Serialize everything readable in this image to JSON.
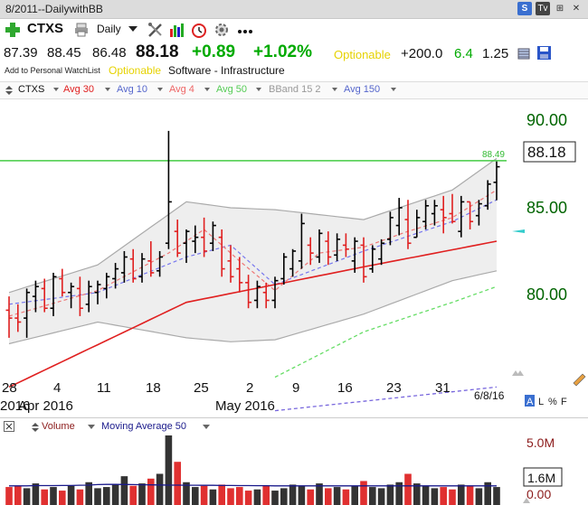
{
  "window": {
    "title": "8/2011--DailywithBB"
  },
  "window_icons": [
    "S",
    "Tv",
    "⊞",
    "✕"
  ],
  "toolbar": {
    "symbol": "CTXS",
    "period": "Daily",
    "icons": [
      "add-icon",
      "print-icon",
      "draw-tools-icon",
      "bar-chart-icon",
      "alarm-icon",
      "settings-icon",
      "more-icon"
    ]
  },
  "quote": {
    "open": "87.39",
    "high": "88.45",
    "low": "86.48",
    "last": "88.18",
    "change": "+0.89",
    "change_pct": "+1.02%",
    "optionable": "Optionable",
    "volume_change": "+200.0",
    "rs": "6.4",
    "beta": "1.25"
  },
  "info": {
    "add_watchlist": "Add to Personal WatchList",
    "optionable": "Optionable",
    "sector": "Software - Infrastructure"
  },
  "legend": {
    "symbol": "CTXS",
    "avg30": "Avg 30",
    "avg10": "Avg 10",
    "avg4": "Avg 4",
    "avg50": "Avg 50",
    "bband": "BBand 15 2",
    "avg150": "Avg 150"
  },
  "colors": {
    "up": "#000000",
    "down": "#e02020",
    "avg30": "#e02020",
    "avg10": "#7777ee",
    "avg4": "#ee7777",
    "avg50": "#66dd66",
    "avg150": "#7766dd",
    "band_fill": "#eeeeee",
    "band_line": "#aaaaaa",
    "level_line": "#44cc44",
    "axis_label": "#006400",
    "positive": "#00aa00"
  },
  "price_axis": [
    "90.00",
    "85.00",
    "80.00"
  ],
  "last_price_box": "88.18",
  "level_label": "88.49",
  "date_stamp": "6/8/16",
  "x_axis": {
    "days": [
      "28",
      "4",
      "11",
      "18",
      "25",
      "2",
      "9",
      "16",
      "23",
      "31"
    ],
    "months": [
      "2016",
      "Apr 2016",
      "May 2016"
    ]
  },
  "panel_buttons": {
    "a": "A",
    "l": "L",
    "pct": "%",
    "f": "F"
  },
  "volume_legend": {
    "label": "Volume",
    "ma": "Moving Average 50"
  },
  "volume_axis": [
    "5.0M",
    "1.6M",
    "0.00"
  ],
  "chart_data": {
    "type": "ohlc",
    "price_range": [
      77.8,
      91.6
    ],
    "level": 88.49,
    "bars": [
      {
        "o": 80.9,
        "h": 81.6,
        "l": 79.5,
        "c": 80.5
      },
      {
        "o": 80.5,
        "h": 81.2,
        "l": 79.8,
        "c": 80.3
      },
      {
        "o": 80.5,
        "h": 82.0,
        "l": 79.5,
        "c": 81.8
      },
      {
        "o": 81.6,
        "h": 82.4,
        "l": 80.8,
        "c": 82.1
      },
      {
        "o": 82.0,
        "h": 82.5,
        "l": 80.8,
        "c": 81.0
      },
      {
        "o": 81.0,
        "h": 82.8,
        "l": 80.6,
        "c": 82.6
      },
      {
        "o": 82.5,
        "h": 83.0,
        "l": 81.6,
        "c": 81.8
      },
      {
        "o": 81.8,
        "h": 82.3,
        "l": 81.0,
        "c": 82.1
      },
      {
        "o": 82.0,
        "h": 82.6,
        "l": 80.6,
        "c": 81.0
      },
      {
        "o": 81.2,
        "h": 82.4,
        "l": 80.8,
        "c": 82.1
      },
      {
        "o": 81.8,
        "h": 82.4,
        "l": 81.2,
        "c": 82.2
      },
      {
        "o": 82.0,
        "h": 82.8,
        "l": 81.5,
        "c": 82.6
      },
      {
        "o": 82.5,
        "h": 83.3,
        "l": 82.0,
        "c": 83.0
      },
      {
        "o": 82.8,
        "h": 83.9,
        "l": 82.3,
        "c": 83.6
      },
      {
        "o": 83.5,
        "h": 84.0,
        "l": 82.3,
        "c": 82.5
      },
      {
        "o": 82.6,
        "h": 83.8,
        "l": 82.3,
        "c": 83.5
      },
      {
        "o": 83.4,
        "h": 84.4,
        "l": 82.6,
        "c": 82.8
      },
      {
        "o": 82.9,
        "h": 83.9,
        "l": 82.6,
        "c": 83.6
      },
      {
        "o": 84.3,
        "h": 90.0,
        "l": 84.0,
        "c": 86.4
      },
      {
        "o": 84.9,
        "h": 85.5,
        "l": 83.6,
        "c": 83.8
      },
      {
        "o": 84.3,
        "h": 85.0,
        "l": 83.3,
        "c": 84.9
      },
      {
        "o": 84.4,
        "h": 85.2,
        "l": 83.8,
        "c": 84.6
      },
      {
        "o": 84.6,
        "h": 85.6,
        "l": 83.6,
        "c": 83.9
      },
      {
        "o": 84.3,
        "h": 85.4,
        "l": 83.9,
        "c": 85.2
      },
      {
        "o": 84.6,
        "h": 85.0,
        "l": 82.6,
        "c": 83.0
      },
      {
        "o": 83.4,
        "h": 84.2,
        "l": 82.3,
        "c": 82.6
      },
      {
        "o": 83.0,
        "h": 83.6,
        "l": 81.8,
        "c": 82.3
      },
      {
        "o": 82.3,
        "h": 82.7,
        "l": 81.0,
        "c": 81.3
      },
      {
        "o": 81.4,
        "h": 82.4,
        "l": 81.0,
        "c": 82.1
      },
      {
        "o": 81.8,
        "h": 82.3,
        "l": 81.0,
        "c": 81.4
      },
      {
        "o": 81.4,
        "h": 82.6,
        "l": 81.0,
        "c": 82.4
      },
      {
        "o": 82.5,
        "h": 83.8,
        "l": 82.2,
        "c": 83.6
      },
      {
        "o": 83.0,
        "h": 84.0,
        "l": 82.6,
        "c": 83.9
      },
      {
        "o": 83.4,
        "h": 85.8,
        "l": 83.0,
        "c": 85.3
      },
      {
        "o": 84.2,
        "h": 84.6,
        "l": 83.2,
        "c": 83.8
      },
      {
        "o": 83.6,
        "h": 85.0,
        "l": 83.3,
        "c": 84.8
      },
      {
        "o": 84.4,
        "h": 84.9,
        "l": 83.2,
        "c": 83.6
      },
      {
        "o": 83.7,
        "h": 84.8,
        "l": 83.4,
        "c": 84.5
      },
      {
        "o": 84.2,
        "h": 84.8,
        "l": 83.6,
        "c": 84.0
      },
      {
        "o": 83.4,
        "h": 84.6,
        "l": 82.8,
        "c": 84.4
      },
      {
        "o": 84.2,
        "h": 84.6,
        "l": 82.3,
        "c": 82.6
      },
      {
        "o": 83.0,
        "h": 84.2,
        "l": 82.8,
        "c": 84.0
      },
      {
        "o": 83.5,
        "h": 84.5,
        "l": 83.2,
        "c": 84.3
      },
      {
        "o": 84.5,
        "h": 85.9,
        "l": 84.2,
        "c": 85.6
      },
      {
        "o": 85.2,
        "h": 86.6,
        "l": 84.7,
        "c": 86.1
      },
      {
        "o": 85.5,
        "h": 86.5,
        "l": 84.0,
        "c": 84.3
      },
      {
        "o": 84.6,
        "h": 86.0,
        "l": 84.6,
        "c": 85.6
      },
      {
        "o": 85.4,
        "h": 86.5,
        "l": 85.0,
        "c": 86.2
      },
      {
        "o": 85.8,
        "h": 86.5,
        "l": 85.2,
        "c": 86.2
      },
      {
        "o": 86.0,
        "h": 86.7,
        "l": 84.8,
        "c": 85.6
      },
      {
        "o": 85.8,
        "h": 86.8,
        "l": 85.3,
        "c": 85.4
      },
      {
        "o": 84.9,
        "h": 86.7,
        "l": 84.6,
        "c": 86.4
      },
      {
        "o": 86.4,
        "h": 86.4,
        "l": 85.0,
        "c": 85.4
      },
      {
        "o": 85.7,
        "h": 86.5,
        "l": 85.2,
        "c": 86.3
      },
      {
        "o": 86.2,
        "h": 87.5,
        "l": 86.0,
        "c": 87.3
      },
      {
        "o": 87.39,
        "h": 88.45,
        "l": 86.48,
        "c": 88.18
      }
    ],
    "avg30": [
      [
        0,
        77.0
      ],
      [
        20,
        81.3
      ],
      [
        40,
        83.1
      ],
      [
        55,
        84.4
      ]
    ],
    "avg10": [
      [
        0,
        81.2
      ],
      [
        10,
        81.8
      ],
      [
        20,
        83.6
      ],
      [
        25,
        84.2
      ],
      [
        30,
        82.2
      ],
      [
        40,
        83.9
      ],
      [
        50,
        85.4
      ],
      [
        55,
        86.5
      ]
    ],
    "avg4": [
      [
        0,
        80.6
      ],
      [
        10,
        81.9
      ],
      [
        18,
        83.8
      ],
      [
        22,
        85.0
      ],
      [
        26,
        83.4
      ],
      [
        30,
        81.9
      ],
      [
        35,
        83.8
      ],
      [
        40,
        84.1
      ],
      [
        45,
        84.9
      ],
      [
        50,
        85.6
      ],
      [
        55,
        87.0
      ]
    ],
    "avg50": [
      [
        30,
        77.5
      ],
      [
        40,
        79.8
      ],
      [
        50,
        81.3
      ],
      [
        55,
        82.1
      ]
    ],
    "avg150": [
      [
        30,
        75.8
      ],
      [
        55,
        77.0
      ]
    ],
    "bb_upper": [
      [
        0,
        81.8
      ],
      [
        10,
        83.2
      ],
      [
        20,
        86.4
      ],
      [
        25,
        86.1
      ],
      [
        30,
        86.0
      ],
      [
        40,
        85.5
      ],
      [
        50,
        87.0
      ],
      [
        55,
        88.6
      ]
    ],
    "bb_lower": [
      [
        0,
        79.2
      ],
      [
        10,
        80.3
      ],
      [
        20,
        79.5
      ],
      [
        25,
        79.3
      ],
      [
        30,
        79.4
      ],
      [
        40,
        80.7
      ],
      [
        50,
        82.4
      ],
      [
        55,
        82.9
      ]
    ],
    "volume": {
      "range": [
        0,
        5.8
      ],
      "values": [
        1.5,
        1.6,
        1.4,
        1.8,
        1.3,
        1.5,
        1.2,
        1.6,
        1.3,
        1.9,
        1.4,
        1.5,
        1.7,
        2.4,
        1.6,
        1.8,
        2.2,
        2.6,
        5.8,
        3.6,
        1.9,
        1.5,
        1.6,
        1.3,
        1.7,
        1.4,
        1.5,
        1.2,
        1.3,
        1.6,
        1.2,
        1.4,
        1.7,
        1.6,
        1.3,
        1.8,
        1.4,
        1.5,
        1.3,
        1.6,
        2.0,
        1.5,
        1.4,
        1.7,
        1.9,
        2.6,
        1.8,
        1.6,
        1.4,
        1.5,
        1.3,
        1.7,
        1.6,
        1.4,
        1.9,
        1.5
      ],
      "ma": [
        1.6,
        1.6,
        1.6,
        1.62,
        1.62,
        1.62,
        1.63,
        1.63,
        1.65,
        1.66,
        1.7,
        1.72,
        1.72,
        1.71,
        1.7,
        1.69,
        1.68,
        1.67,
        1.66,
        1.66,
        1.65,
        1.65,
        1.64,
        1.64,
        1.63,
        1.63,
        1.62,
        1.62,
        1.61,
        1.61,
        1.6,
        1.6,
        1.6,
        1.6,
        1.6,
        1.6,
        1.6,
        1.6,
        1.6,
        1.6,
        1.6,
        1.6,
        1.6,
        1.6,
        1.6,
        1.6,
        1.6,
        1.6,
        1.6,
        1.6,
        1.6,
        1.6,
        1.6,
        1.6,
        1.6,
        1.6
      ]
    }
  }
}
